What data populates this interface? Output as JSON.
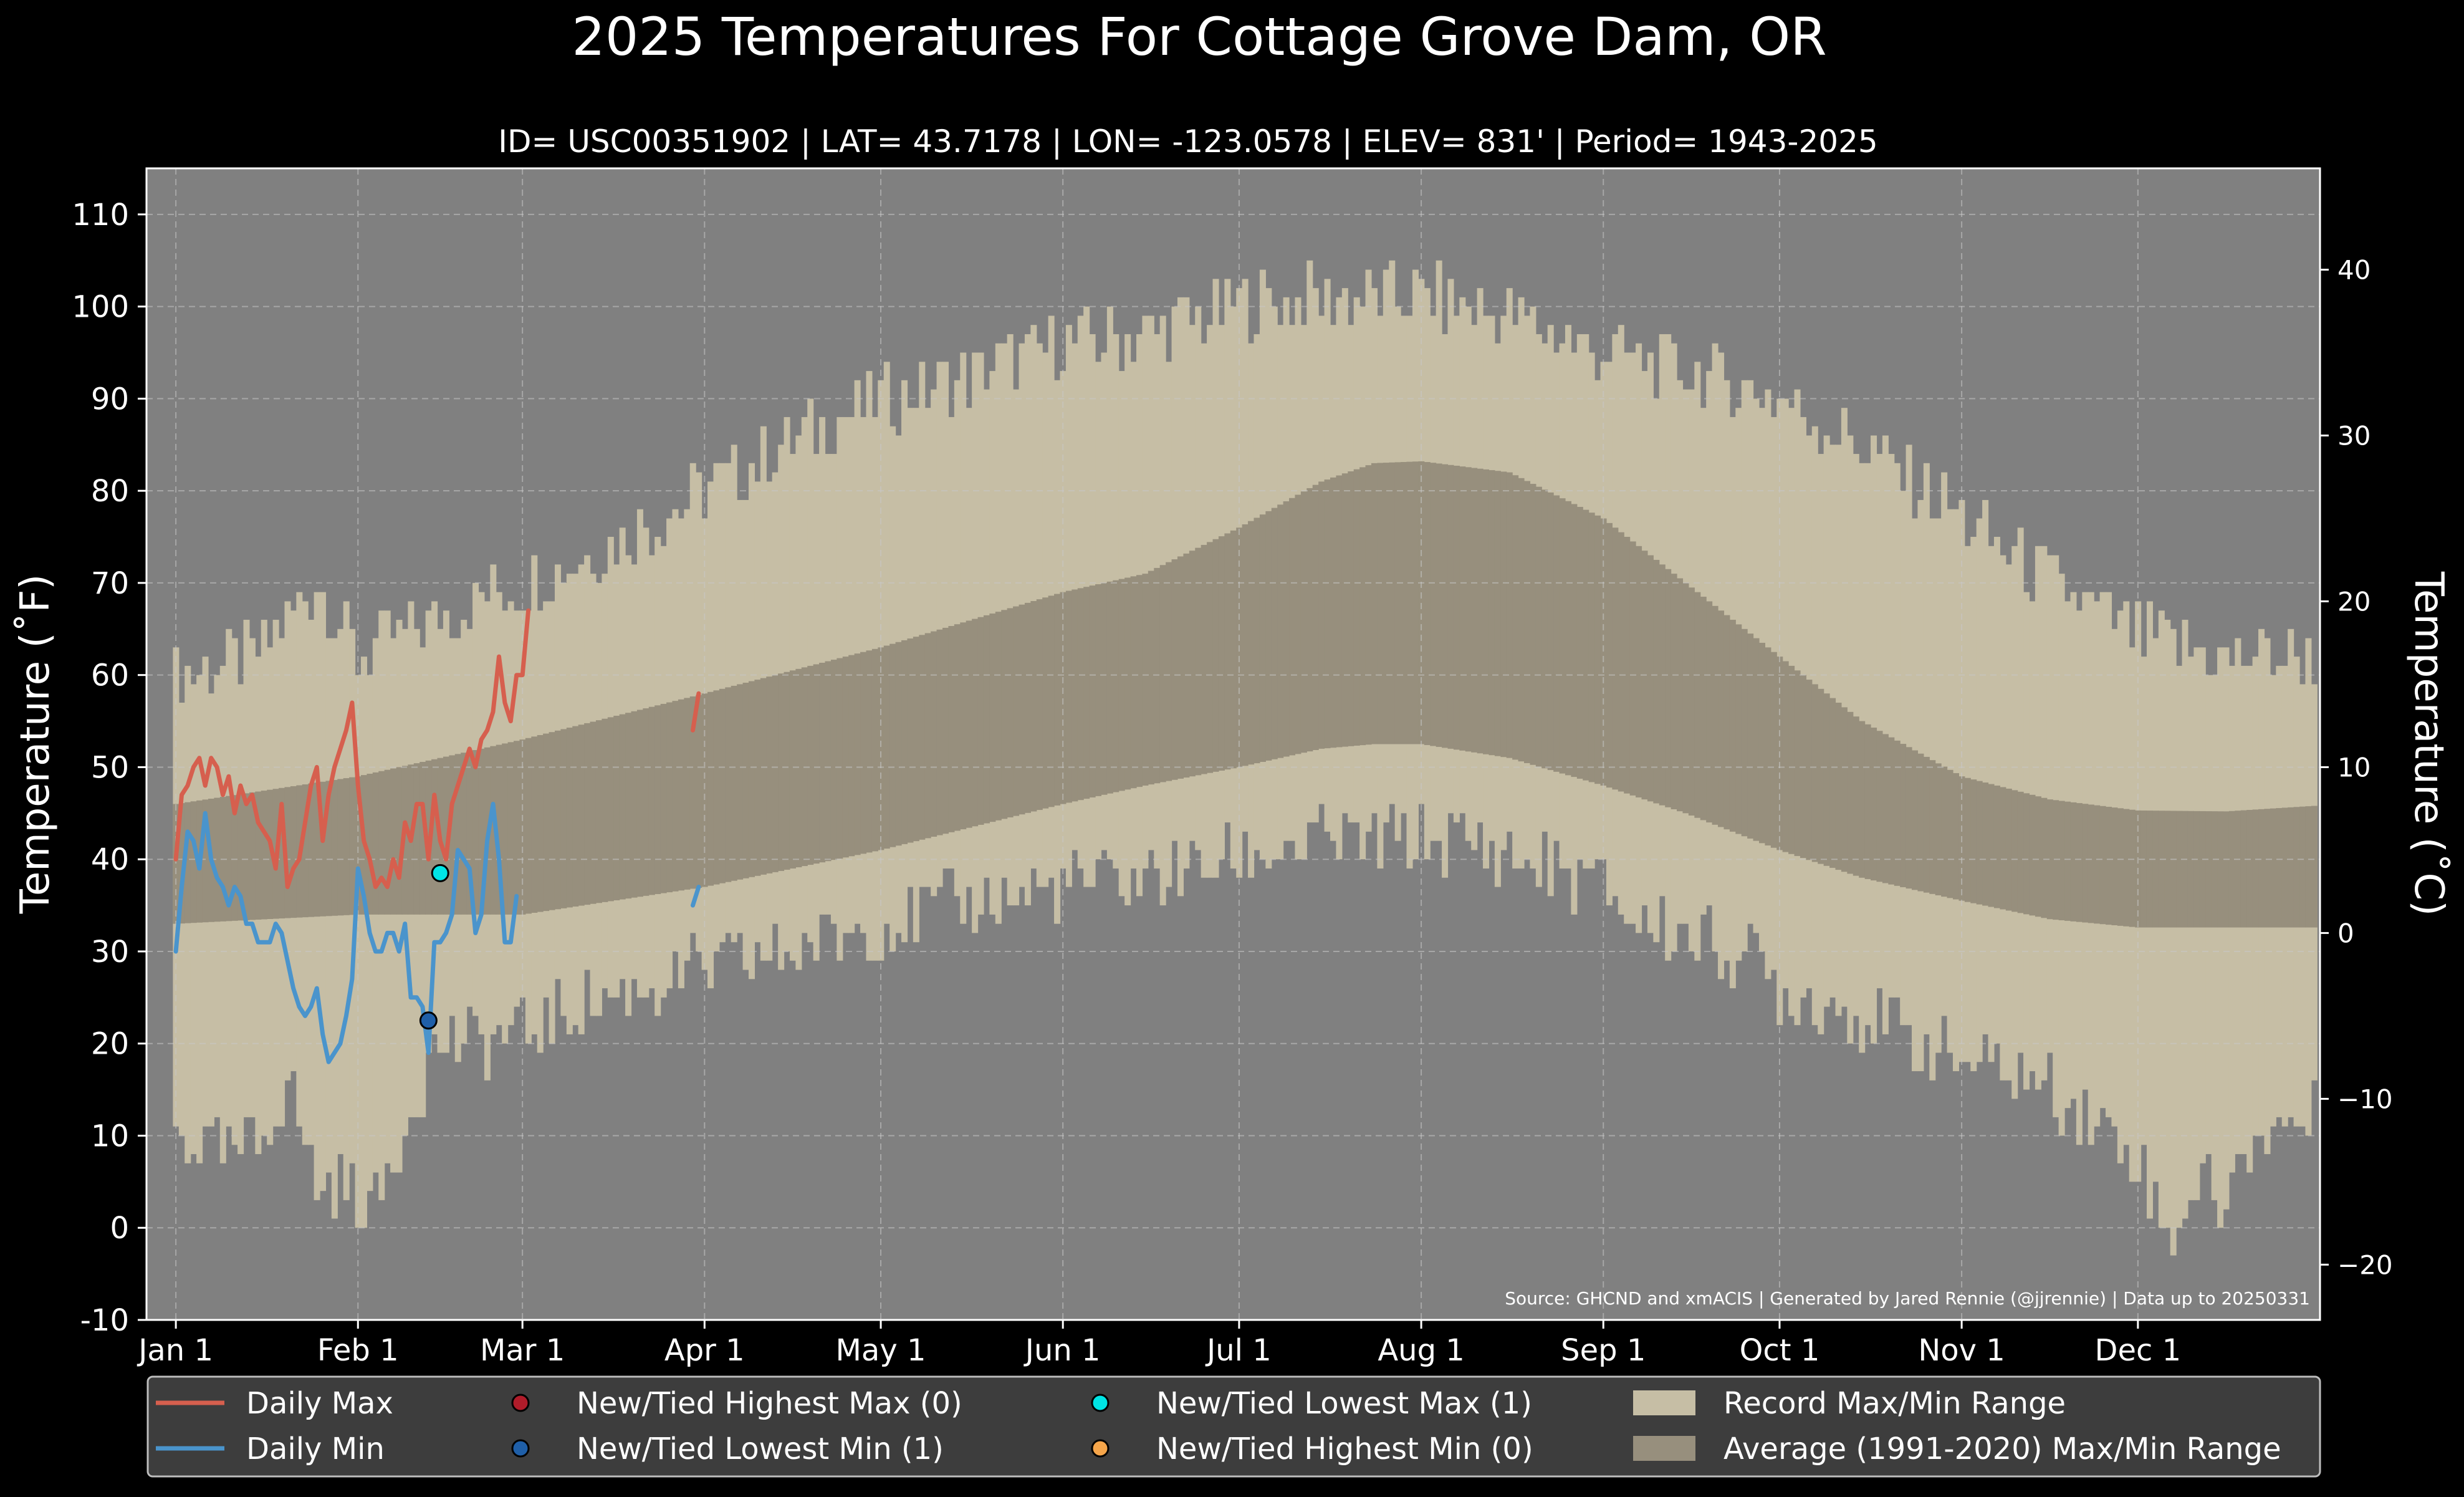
{
  "chart_data": {
    "type": "area",
    "title": "2025 Temperatures For Cottage Grove Dam, OR",
    "subtitle": "ID= USC00351902 | LAT= 43.7178 | LON= -123.0578 | ELEV= 831' | Period= 1943-2025",
    "ylabel_left": "Temperature ($^\\circ$F)",
    "ylabel_left_display": "Temperature (˚F)",
    "ylabel_right_display": "Temperature (˚C)",
    "ylim": [
      -10,
      115
    ],
    "y_ticks_f": [
      -10,
      0,
      10,
      20,
      30,
      40,
      50,
      60,
      70,
      80,
      90,
      100,
      110
    ],
    "y_ticks_c": [
      -20,
      -10,
      0,
      10,
      20,
      30,
      40
    ],
    "y_ticks_c_labels": [
      "−20",
      "−10",
      "0",
      "10",
      "20",
      "30",
      "40"
    ],
    "x_ticks": [
      {
        "day": 1,
        "label": "Jan 1"
      },
      {
        "day": 32,
        "label": "Feb 1"
      },
      {
        "day": 60,
        "label": "Mar 1"
      },
      {
        "day": 91,
        "label": "Apr 1"
      },
      {
        "day": 121,
        "label": "May 1"
      },
      {
        "day": 152,
        "label": "Jun 1"
      },
      {
        "day": 182,
        "label": "Jul 1"
      },
      {
        "day": 213,
        "label": "Aug 1"
      },
      {
        "day": 244,
        "label": "Sep 1"
      },
      {
        "day": 274,
        "label": "Oct 1"
      },
      {
        "day": 305,
        "label": "Nov 1"
      },
      {
        "day": 335,
        "label": "Dec 1"
      }
    ],
    "xlim": [
      -4,
      366
    ],
    "grid": true,
    "background": "#808080",
    "source_note": "Source: GHCND and xmACIS | Generated by Jared Rennie (@jjrennie) | Data up to 20250331",
    "record_max_anchors": [
      [
        1,
        60
      ],
      [
        15,
        62
      ],
      [
        25,
        70
      ],
      [
        32,
        62
      ],
      [
        45,
        66
      ],
      [
        60,
        70
      ],
      [
        75,
        74
      ],
      [
        91,
        80
      ],
      [
        105,
        85
      ],
      [
        121,
        90
      ],
      [
        135,
        92
      ],
      [
        152,
        96
      ],
      [
        166,
        97
      ],
      [
        182,
        100
      ],
      [
        196,
        101
      ],
      [
        213,
        101
      ],
      [
        228,
        99
      ],
      [
        244,
        95
      ],
      [
        258,
        93
      ],
      [
        274,
        90
      ],
      [
        288,
        85
      ],
      [
        305,
        77
      ],
      [
        320,
        70
      ],
      [
        335,
        64
      ],
      [
        350,
        62
      ],
      [
        365,
        62
      ]
    ],
    "record_min_anchors": [
      [
        1,
        10
      ],
      [
        10,
        8
      ],
      [
        15,
        9
      ],
      [
        20,
        16
      ],
      [
        25,
        5
      ],
      [
        32,
        4
      ],
      [
        35,
        2
      ],
      [
        42,
        15
      ],
      [
        46,
        20
      ],
      [
        50,
        20
      ],
      [
        60,
        21
      ],
      [
        70,
        24
      ],
      [
        91,
        28
      ],
      [
        105,
        30
      ],
      [
        121,
        33
      ],
      [
        135,
        35
      ],
      [
        152,
        37
      ],
      [
        166,
        38
      ],
      [
        182,
        40
      ],
      [
        196,
        42
      ],
      [
        205,
        42
      ],
      [
        213,
        42
      ],
      [
        220,
        42
      ],
      [
        235,
        39
      ],
      [
        244,
        37
      ],
      [
        250,
        33
      ],
      [
        258,
        32
      ],
      [
        270,
        29
      ],
      [
        274,
        26
      ],
      [
        285,
        24
      ],
      [
        295,
        21
      ],
      [
        305,
        18
      ],
      [
        315,
        17
      ],
      [
        325,
        13
      ],
      [
        335,
        8
      ],
      [
        340,
        -1
      ],
      [
        345,
        5
      ],
      [
        350,
        3
      ],
      [
        355,
        10
      ],
      [
        365,
        12
      ]
    ],
    "avg_max_anchors": [
      [
        1,
        46
      ],
      [
        32,
        49
      ],
      [
        60,
        53
      ],
      [
        91,
        58
      ],
      [
        121,
        63
      ],
      [
        152,
        69
      ],
      [
        166,
        71
      ],
      [
        182,
        76
      ],
      [
        196,
        81
      ],
      [
        205,
        83
      ],
      [
        213,
        83.2
      ],
      [
        228,
        82
      ],
      [
        244,
        77
      ],
      [
        258,
        70
      ],
      [
        274,
        62
      ],
      [
        288,
        55
      ],
      [
        305,
        49
      ],
      [
        320,
        46.5
      ],
      [
        335,
        45.3
      ],
      [
        350,
        45.2
      ],
      [
        365,
        45.8
      ]
    ],
    "avg_min_anchors": [
      [
        1,
        33
      ],
      [
        32,
        34
      ],
      [
        60,
        34
      ],
      [
        91,
        37
      ],
      [
        121,
        41
      ],
      [
        152,
        46
      ],
      [
        166,
        48
      ],
      [
        182,
        50
      ],
      [
        196,
        52
      ],
      [
        205,
        52.5
      ],
      [
        213,
        52.5
      ],
      [
        228,
        51
      ],
      [
        244,
        48
      ],
      [
        258,
        45
      ],
      [
        274,
        41
      ],
      [
        288,
        38
      ],
      [
        305,
        35.5
      ],
      [
        320,
        33.5
      ],
      [
        335,
        32.6
      ],
      [
        350,
        32.6
      ],
      [
        365,
        32.6
      ]
    ],
    "series": [
      {
        "name": "Daily Max",
        "color": "#d65f4e",
        "segments": [
          [
            [
              1,
              40
            ],
            [
              2,
              47
            ],
            [
              3,
              48
            ],
            [
              4,
              50
            ],
            [
              5,
              51
            ],
            [
              6,
              48
            ],
            [
              7,
              51
            ],
            [
              8,
              50
            ],
            [
              9,
              47
            ],
            [
              10,
              49
            ],
            [
              11,
              45
            ],
            [
              12,
              48
            ],
            [
              13,
              46
            ],
            [
              14,
              47
            ],
            [
              15,
              44
            ],
            [
              16,
              43
            ],
            [
              17,
              42
            ],
            [
              18,
              39
            ],
            [
              19,
              46
            ],
            [
              20,
              37
            ],
            [
              21,
              39
            ],
            [
              22,
              40
            ],
            [
              23,
              44
            ],
            [
              24,
              48
            ],
            [
              25,
              50
            ],
            [
              26,
              42
            ],
            [
              27,
              47
            ],
            [
              28,
              50
            ],
            [
              29,
              52
            ],
            [
              30,
              54
            ],
            [
              31,
              57
            ],
            [
              32,
              48
            ],
            [
              33,
              42
            ],
            [
              34,
              40
            ],
            [
              35,
              37
            ],
            [
              36,
              38
            ],
            [
              37,
              37
            ],
            [
              38,
              40
            ],
            [
              39,
              38
            ],
            [
              40,
              44
            ],
            [
              41,
              42
            ],
            [
              42,
              46
            ],
            [
              43,
              46
            ],
            [
              44,
              40
            ],
            [
              45,
              47
            ],
            [
              46,
              42
            ],
            [
              47,
              40
            ],
            [
              48,
              46
            ],
            [
              49,
              48
            ],
            [
              50,
              50
            ],
            [
              51,
              52
            ],
            [
              52,
              50
            ],
            [
              53,
              53
            ],
            [
              54,
              54
            ],
            [
              55,
              56
            ],
            [
              56,
              62
            ],
            [
              57,
              57
            ],
            [
              58,
              55
            ],
            [
              59,
              60
            ],
            [
              60,
              60
            ],
            [
              61,
              67
            ]
          ],
          [
            [
              89,
              54
            ],
            [
              90,
              58
            ]
          ]
        ]
      },
      {
        "name": "Daily Min",
        "color": "#4a94cc",
        "segments": [
          [
            [
              1,
              30
            ],
            [
              2,
              37
            ],
            [
              3,
              43
            ],
            [
              4,
              42
            ],
            [
              5,
              39
            ],
            [
              6,
              45
            ],
            [
              7,
              40
            ],
            [
              8,
              38
            ],
            [
              9,
              37
            ],
            [
              10,
              35
            ],
            [
              11,
              37
            ],
            [
              12,
              36
            ],
            [
              13,
              33
            ],
            [
              14,
              33
            ],
            [
              15,
              31
            ],
            [
              16,
              31
            ],
            [
              17,
              31
            ],
            [
              18,
              33
            ],
            [
              19,
              32
            ],
            [
              20,
              29
            ],
            [
              21,
              26
            ],
            [
              22,
              24
            ],
            [
              23,
              23
            ],
            [
              24,
              24
            ],
            [
              25,
              26
            ],
            [
              26,
              21
            ],
            [
              27,
              18
            ],
            [
              28,
              19
            ],
            [
              29,
              20
            ],
            [
              30,
              23
            ],
            [
              31,
              27
            ],
            [
              32,
              39
            ],
            [
              33,
              36
            ],
            [
              34,
              32
            ],
            [
              35,
              30
            ],
            [
              36,
              30
            ],
            [
              37,
              32
            ],
            [
              38,
              32
            ],
            [
              39,
              30
            ],
            [
              40,
              33
            ],
            [
              41,
              25
            ],
            [
              42,
              25
            ],
            [
              43,
              24
            ],
            [
              44,
              19
            ],
            [
              45,
              31
            ],
            [
              46,
              31
            ],
            [
              47,
              32
            ],
            [
              48,
              34
            ],
            [
              49,
              41
            ],
            [
              50,
              40
            ],
            [
              51,
              39
            ],
            [
              52,
              32
            ],
            [
              53,
              34
            ],
            [
              54,
              42
            ],
            [
              55,
              46
            ],
            [
              56,
              40
            ],
            [
              57,
              31
            ],
            [
              58,
              31
            ],
            [
              59,
              36
            ]
          ],
          [
            [
              89,
              35
            ],
            [
              90,
              37
            ]
          ]
        ]
      }
    ],
    "markers": [
      {
        "name": "New/Tied Lowest Max (1)",
        "day": 46,
        "value": 38.5,
        "color": "#00e5e5"
      },
      {
        "name": "New/Tied Lowest Min (1)",
        "day": 44,
        "value": 22.5,
        "color": "#1f5fa8"
      }
    ],
    "legend": {
      "placement": "bottom",
      "items": [
        {
          "label": "Daily Max",
          "kind": "line",
          "color": "#d65f4e"
        },
        {
          "label": "Daily Min",
          "kind": "line",
          "color": "#4a94cc"
        },
        {
          "label": "New/Tied Highest Max (0)",
          "kind": "dot",
          "color": "#b01c2a"
        },
        {
          "label": "New/Tied Lowest Min (1)",
          "kind": "dot",
          "color": "#1f5fa8"
        },
        {
          "label": "New/Tied Lowest Max (1)",
          "kind": "dot",
          "color": "#00e5e5"
        },
        {
          "label": "New/Tied Highest Min (0)",
          "kind": "dot",
          "color": "#f5a54a"
        },
        {
          "label": "Record Max/Min Range",
          "kind": "patch",
          "color": "#c6bea5"
        },
        {
          "label": "Average (1991-2020) Max/Min Range",
          "kind": "patch",
          "color": "#978f7d"
        }
      ]
    },
    "colors": {
      "record_range": "#c6bea5",
      "average_range": "#978f7d",
      "plot_background": "#808080",
      "legend_background": "#3d3d3d"
    }
  }
}
